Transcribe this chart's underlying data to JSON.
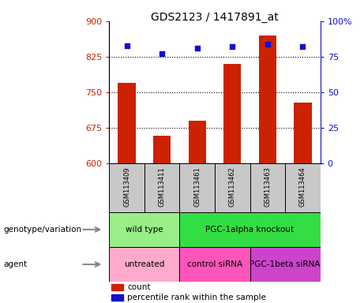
{
  "title": "GDS2123 / 1417891_at",
  "samples": [
    "GSM113409",
    "GSM113411",
    "GSM113461",
    "GSM113462",
    "GSM113463",
    "GSM113464"
  ],
  "count_values": [
    770,
    658,
    690,
    810,
    870,
    728
  ],
  "percentile_values": [
    83,
    77,
    81,
    82,
    84,
    82
  ],
  "ylim_left": [
    600,
    900
  ],
  "ylim_right": [
    0,
    100
  ],
  "yticks_left": [
    600,
    675,
    750,
    825,
    900
  ],
  "yticks_right": [
    0,
    25,
    50,
    75,
    100
  ],
  "bar_color": "#CC2200",
  "dot_color": "#1111CC",
  "bar_width": 0.5,
  "genotype_labels": [
    {
      "label": "wild type",
      "span": [
        0,
        2
      ],
      "color": "#99EE88"
    },
    {
      "label": "PGC-1alpha knockout",
      "span": [
        2,
        6
      ],
      "color": "#33DD44"
    }
  ],
  "agent_labels": [
    {
      "label": "untreated",
      "span": [
        0,
        2
      ],
      "color": "#FFAACC"
    },
    {
      "label": "control siRNA",
      "span": [
        2,
        4
      ],
      "color": "#FF55BB"
    },
    {
      "label": "PGC-1beta siRNA",
      "span": [
        4,
        6
      ],
      "color": "#CC44CC"
    }
  ],
  "legend_count_label": "count",
  "legend_pct_label": "percentile rank within the sample",
  "genotype_row_label": "genotype/variation",
  "agent_row_label": "agent",
  "left_axis_color": "#CC2200",
  "right_axis_color": "#1111CC",
  "bg_color": "#FFFFFF",
  "sample_box_color": "#C8C8C8",
  "hline_values": [
    825,
    750,
    675
  ]
}
